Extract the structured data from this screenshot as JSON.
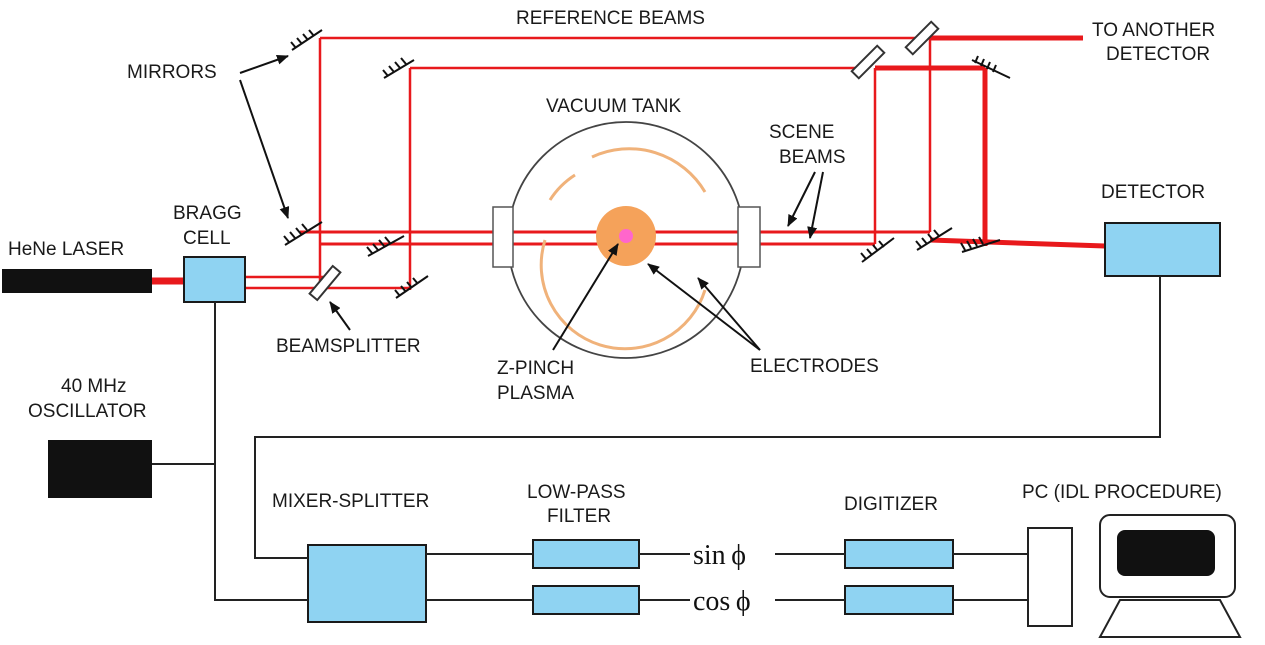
{
  "labels": {
    "reference_beams": "REFERENCE BEAMS",
    "to_another_line1": "TO ANOTHER",
    "to_another_line2": "DETECTOR",
    "mirrors": "MIRRORS",
    "vacuum_tank": "VACUUM TANK",
    "scene_line1": "SCENE",
    "scene_line2": "BEAMS",
    "detector": "DETECTOR",
    "bragg_line1": "BRAGG",
    "bragg_line2": "CELL",
    "laser": "HeNe LASER",
    "beamsplitter": "BEAMSPLITTER",
    "zpinch_line1": "Z-PINCH",
    "zpinch_line2": "PLASMA",
    "electrodes": "ELECTRODES",
    "osc_line1": "40 MHz",
    "osc_line2": "OSCILLATOR",
    "mixer": "MIXER-SPLITTER",
    "lowpass_line1": "LOW-PASS",
    "lowpass_line2": "FILTER",
    "digitizer": "DIGITIZER",
    "pc": "PC (IDL PROCEDURE)",
    "sin": "sin ϕ",
    "cos": "cos ϕ"
  },
  "colors": {
    "beam": "#e8191c",
    "box": "#8fd3f2",
    "plasma": "#f5a25a",
    "electrode": "#f0b27a",
    "core": "#ff66cc"
  }
}
